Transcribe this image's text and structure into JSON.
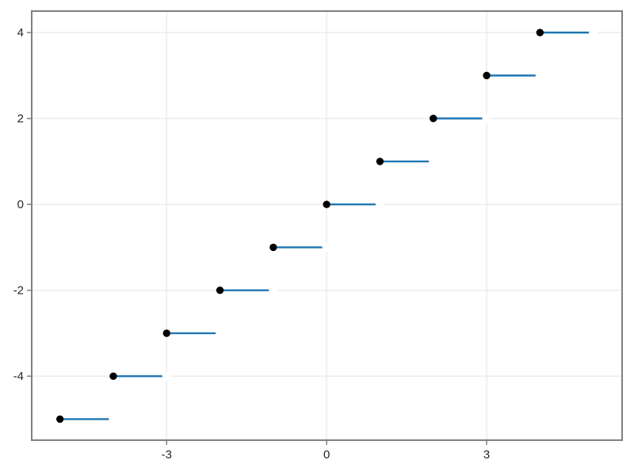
{
  "chart_data": {
    "type": "step",
    "title": "",
    "xlabel": "",
    "ylabel": "",
    "description": "Step plot of y = floor(x): horizontal segments with closed left endpoints and open right endpoints",
    "steps": [
      {
        "y": -5,
        "x_start": -5,
        "x_end": -4
      },
      {
        "y": -4,
        "x_start": -4,
        "x_end": -3
      },
      {
        "y": -3,
        "x_start": -3,
        "x_end": -2
      },
      {
        "y": -2,
        "x_start": -2,
        "x_end": -1
      },
      {
        "y": -1,
        "x_start": -1,
        "x_end": 0
      },
      {
        "y": 0,
        "x_start": 0,
        "x_end": 1
      },
      {
        "y": 1,
        "x_start": 1,
        "x_end": 2
      },
      {
        "y": 2,
        "x_start": 2,
        "x_end": 3
      },
      {
        "y": 3,
        "x_start": 3,
        "x_end": 4
      },
      {
        "y": 4,
        "x_start": 4,
        "x_end": 5
      }
    ],
    "closed_points": [
      [
        -5,
        -5
      ],
      [
        -4,
        -4
      ],
      [
        -3,
        -3
      ],
      [
        -2,
        -2
      ],
      [
        -1,
        -1
      ],
      [
        0,
        0
      ],
      [
        1,
        1
      ],
      [
        2,
        2
      ],
      [
        3,
        3
      ],
      [
        4,
        4
      ]
    ],
    "open_points": [
      [
        -4,
        -5
      ],
      [
        -3,
        -4
      ],
      [
        -2,
        -3
      ],
      [
        -1,
        -2
      ],
      [
        0,
        -1
      ],
      [
        1,
        0
      ],
      [
        2,
        1
      ],
      [
        3,
        2
      ],
      [
        4,
        3
      ],
      [
        5,
        4
      ]
    ],
    "x_ticks": [
      -3,
      0,
      3
    ],
    "x_tick_labels": [
      "-3",
      "0",
      "3"
    ],
    "y_ticks": [
      -4,
      -2,
      0,
      2,
      4
    ],
    "y_tick_labels": [
      "-4",
      "-2",
      "0",
      "2",
      "4"
    ],
    "xlim": [
      -5.53,
      5.54
    ],
    "ylim": [
      -5.49,
      4.5
    ],
    "grid": true,
    "legend": null,
    "colors": {
      "line": "#1f77b4",
      "marker": "#000000",
      "open_marker": "#ffffff",
      "grid": "#ececec",
      "spine": "#808080",
      "tick_label": "#262626",
      "background": "#ffffff"
    }
  }
}
